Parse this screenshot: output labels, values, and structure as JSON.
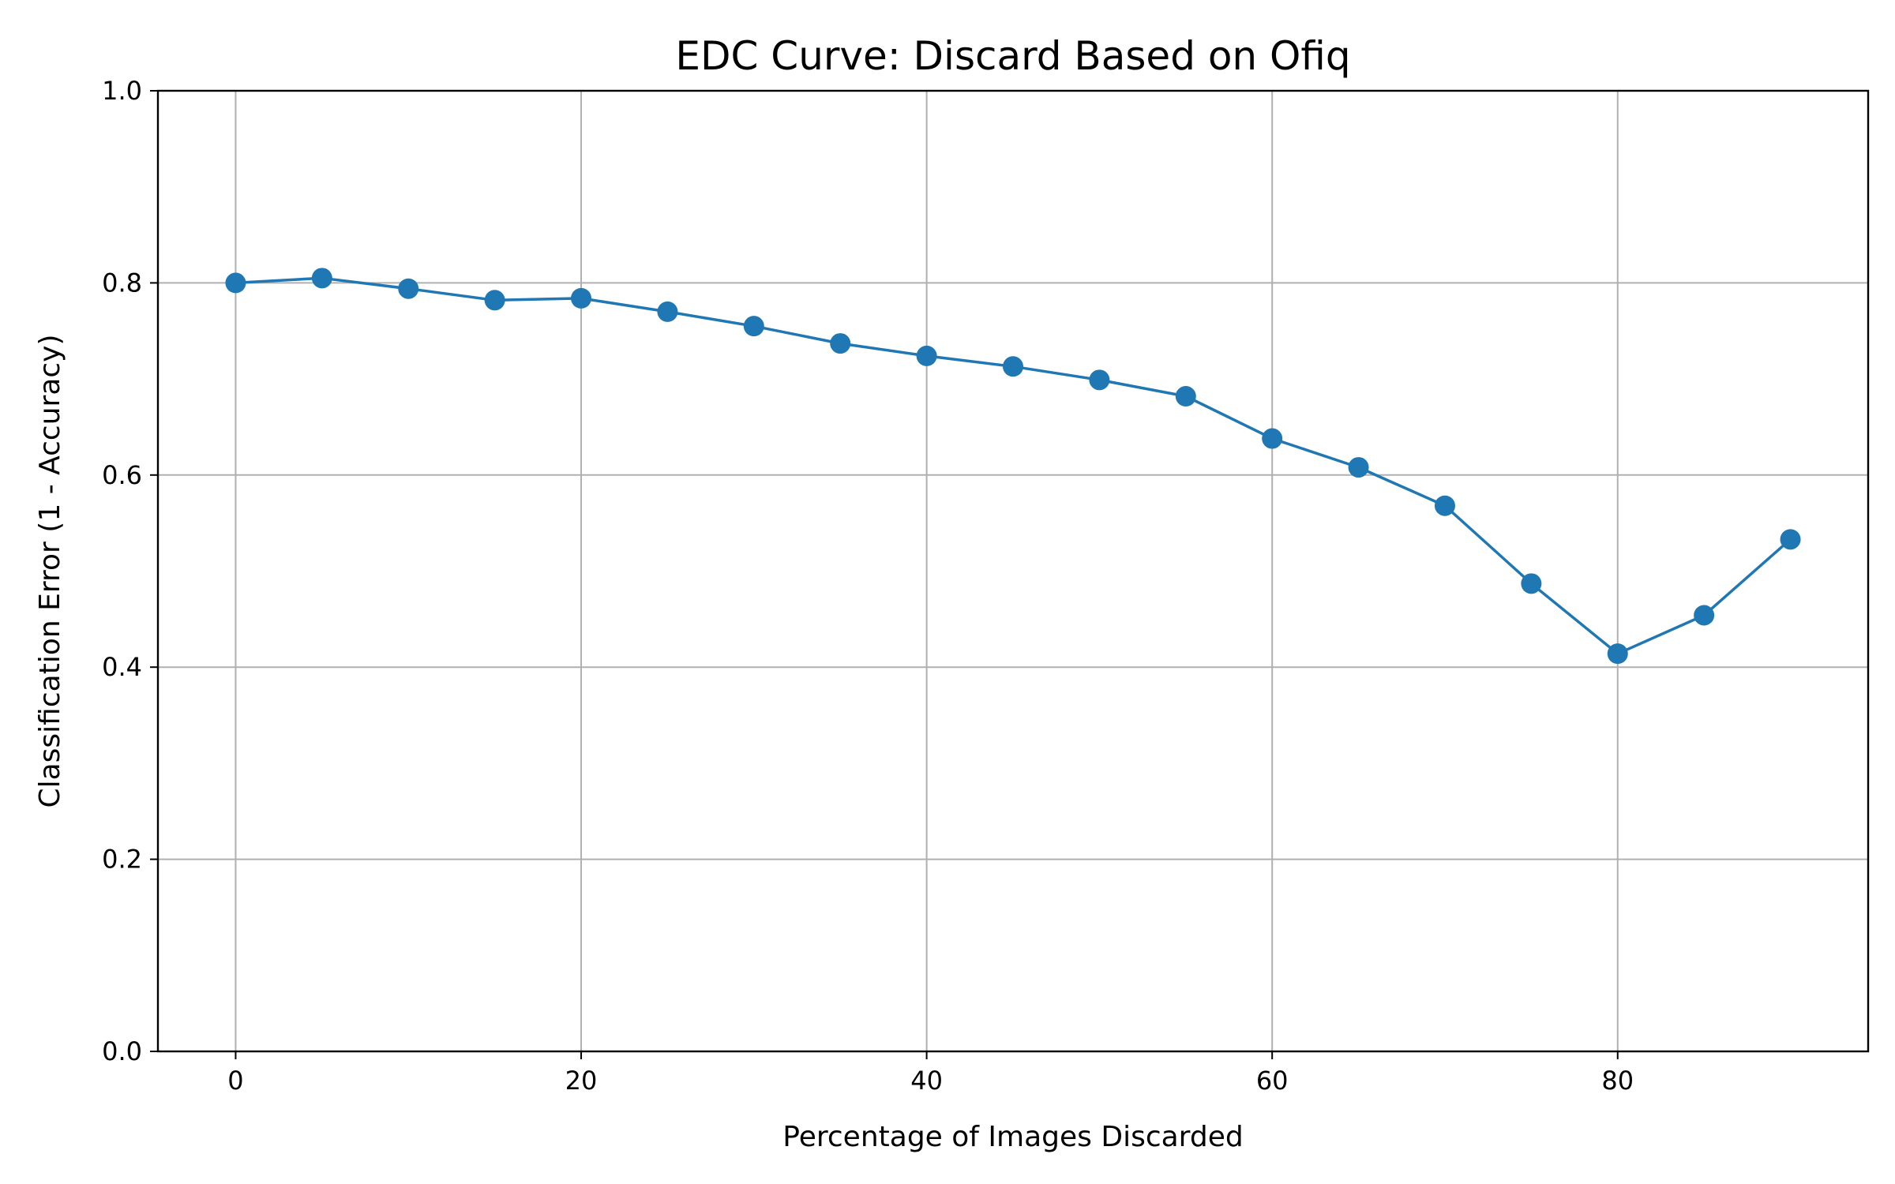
{
  "chart_data": {
    "type": "line",
    "title": "EDC Curve: Discard Based on Ofiq",
    "xlabel": "Percentage of Images Discarded",
    "ylabel": "Classification Error (1 - Accuracy)",
    "xlim": [
      -4.5,
      94.5
    ],
    "ylim": [
      0.0,
      1.0
    ],
    "x_ticks": [
      0,
      20,
      40,
      60,
      80
    ],
    "y_ticks": [
      0.0,
      0.2,
      0.4,
      0.6,
      0.8,
      1.0
    ],
    "x_tick_labels": [
      "0",
      "20",
      "40",
      "60",
      "80"
    ],
    "y_tick_labels": [
      "0.0",
      "0.2",
      "0.4",
      "0.6",
      "0.8",
      "1.0"
    ],
    "grid": true,
    "series": [
      {
        "color": "#1f77b4",
        "marker": "circle",
        "x": [
          0,
          5,
          10,
          15,
          20,
          25,
          30,
          35,
          40,
          45,
          50,
          55,
          60,
          65,
          70,
          75,
          80,
          85,
          90
        ],
        "y": [
          0.8,
          0.805,
          0.794,
          0.782,
          0.784,
          0.77,
          0.755,
          0.737,
          0.724,
          0.713,
          0.699,
          0.682,
          0.638,
          0.608,
          0.568,
          0.487,
          0.414,
          0.454,
          0.533
        ]
      }
    ],
    "colors": {
      "grid": "#b0b0b0",
      "axis": "#000000"
    }
  }
}
